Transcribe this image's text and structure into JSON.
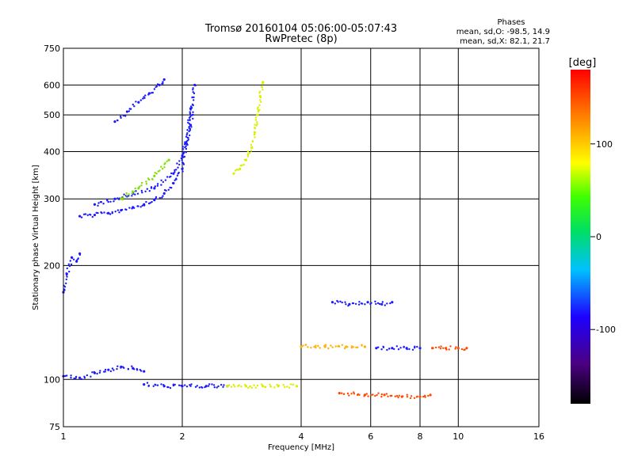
{
  "chart_data": {
    "type": "scatter",
    "title": "Tromsø 20160104 05:06:00-05:07:43",
    "subtitle": "RwPretec (8p)",
    "xlabel": "Frequency [MHz]",
    "ylabel": "Stationary phase Virtual Height [km]",
    "x_scale": "log",
    "y_scale": "log",
    "xlim": [
      1,
      16
    ],
    "ylim": [
      75,
      750
    ],
    "x_ticks": [
      1,
      2,
      4,
      6,
      8,
      10,
      16
    ],
    "y_ticks": [
      75,
      100,
      200,
      300,
      400,
      500,
      600,
      750
    ],
    "grid": true,
    "legend": {
      "title": "Phases",
      "lines": [
        "mean, sd,O: -98.5, 14.9",
        "mean, sd,X: 82.1, 21.7"
      ],
      "placement": "top-right"
    },
    "colorbar": {
      "unit": "[deg]",
      "range": [
        -180,
        180
      ],
      "ticks": [
        100,
        0,
        -100
      ],
      "placement": "right"
    },
    "traces": [
      {
        "x": [
          1.0,
          1.02,
          1.05,
          1.08,
          1.1
        ],
        "y": [
          170,
          190,
          210,
          205,
          215
        ],
        "phase": -100
      },
      {
        "x": [
          1.1,
          1.2,
          1.3,
          1.4,
          1.5,
          1.6,
          1.7,
          1.8,
          1.9,
          2.0,
          2.05,
          2.1
        ],
        "y": [
          270,
          272,
          275,
          280,
          285,
          290,
          298,
          310,
          330,
          360,
          420,
          520
        ],
        "phase": -100
      },
      {
        "x": [
          1.2,
          1.35,
          1.5,
          1.7,
          1.9,
          2.0,
          2.1,
          2.15
        ],
        "y": [
          290,
          300,
          310,
          320,
          350,
          390,
          470,
          600
        ],
        "phase": -100
      },
      {
        "x": [
          1.4,
          1.55,
          1.7,
          1.85
        ],
        "y": [
          300,
          320,
          345,
          380
        ],
        "phase": 40
      },
      {
        "x": [
          1.35,
          1.45,
          1.55,
          1.65,
          1.75,
          1.8
        ],
        "y": [
          480,
          510,
          540,
          570,
          600,
          620
        ],
        "phase": -100
      },
      {
        "x": [
          2.7,
          2.8,
          2.9,
          3.0,
          3.05,
          3.1,
          3.15,
          3.2
        ],
        "y": [
          350,
          360,
          380,
          410,
          450,
          500,
          560,
          610
        ],
        "phase": 110
      },
      {
        "x": [
          1.0,
          1.1,
          1.2,
          1.3,
          1.4,
          1.5,
          1.6
        ],
        "y": [
          102,
          101,
          104,
          106,
          108,
          107,
          105
        ],
        "phase": -100
      },
      {
        "x": [
          1.6,
          1.8,
          2.0,
          2.3,
          2.6
        ],
        "y": [
          97,
          96,
          96,
          96,
          96
        ],
        "phase": -100
      },
      {
        "x": [
          2.6,
          2.9,
          3.2,
          3.5,
          3.9
        ],
        "y": [
          96,
          96,
          96,
          96,
          96
        ],
        "phase": 100
      },
      {
        "x": [
          4.0,
          4.6,
          5.2,
          5.8
        ],
        "y": [
          122,
          122,
          122,
          122
        ],
        "phase": 130
      },
      {
        "x": [
          6.2,
          6.8,
          7.4,
          8.0
        ],
        "y": [
          121,
          121,
          121,
          121
        ],
        "phase": -100
      },
      {
        "x": [
          8.6,
          9.3,
          10.0,
          10.5
        ],
        "y": [
          121,
          121,
          121,
          121
        ],
        "phase": 150
      },
      {
        "x": [
          4.8,
          5.3,
          5.9,
          6.4,
          6.8
        ],
        "y": [
          160,
          158,
          160,
          158,
          160
        ],
        "phase": -100
      },
      {
        "x": [
          5.0,
          5.8,
          6.5,
          7.2,
          8.0,
          8.5
        ],
        "y": [
          92,
          91,
          91,
          90,
          90,
          91
        ],
        "phase": 150
      }
    ]
  }
}
